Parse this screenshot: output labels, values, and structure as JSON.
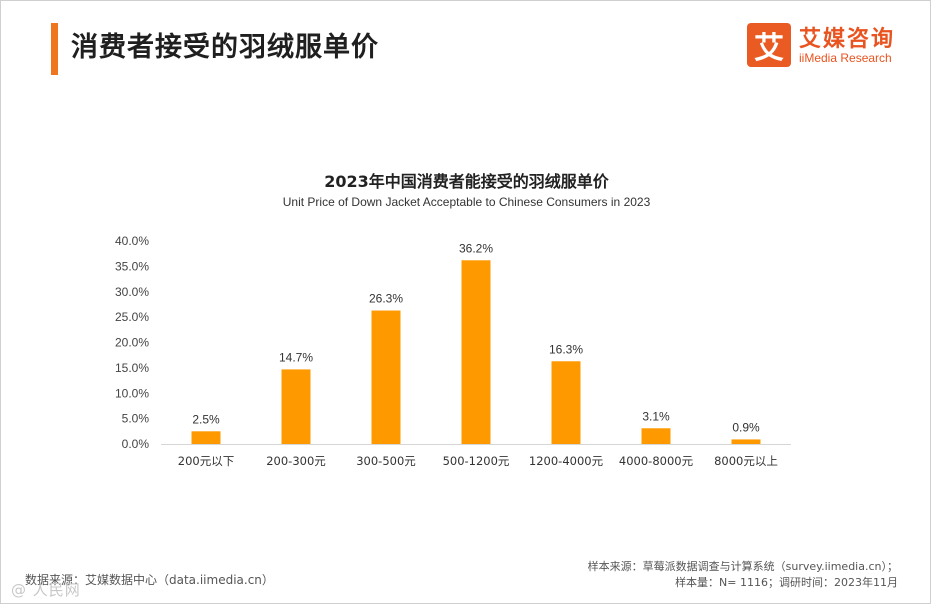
{
  "header": {
    "title": "消费者接受的羽绒服单价",
    "accent_color": "#f0751f"
  },
  "logo": {
    "mark": "艾",
    "name_cn": "艾媒咨询",
    "name_en": "iiMedia Research",
    "color": "#ea5b23"
  },
  "chart_data": {
    "type": "bar",
    "title": "2023年中国消费者能接受的羽绒服单价",
    "subtitle": "Unit Price of Down Jacket Acceptable to Chinese Consumers in 2023",
    "categories": [
      "200元以下",
      "200-300元",
      "300-500元",
      "500-1200元",
      "1200-4000元",
      "4000-8000元",
      "8000元以上"
    ],
    "values": [
      2.5,
      14.7,
      26.3,
      36.2,
      16.3,
      3.1,
      0.9
    ],
    "value_labels": [
      "2.5%",
      "14.7%",
      "26.3%",
      "36.2%",
      "16.3%",
      "3.1%",
      "0.9%"
    ],
    "ylim": [
      0,
      40
    ],
    "yticks": [
      0,
      5,
      10,
      15,
      20,
      25,
      30,
      35,
      40
    ],
    "ytick_labels": [
      "0.0%",
      "5.0%",
      "10.0%",
      "15.0%",
      "20.0%",
      "25.0%",
      "30.0%",
      "35.0%",
      "40.0%"
    ],
    "bar_color": "#ff9900",
    "grid": false,
    "legend": "none"
  },
  "footer": {
    "source": "数据来源：艾媒数据中心（data.iimedia.cn）",
    "note_line1": "样本来源：草莓派数据调查与计算系统（survey.iimedia.cn）；",
    "note_line2": "样本量：N= 1116；调研时间：2023年11月",
    "watermark": "@ 人民网"
  }
}
